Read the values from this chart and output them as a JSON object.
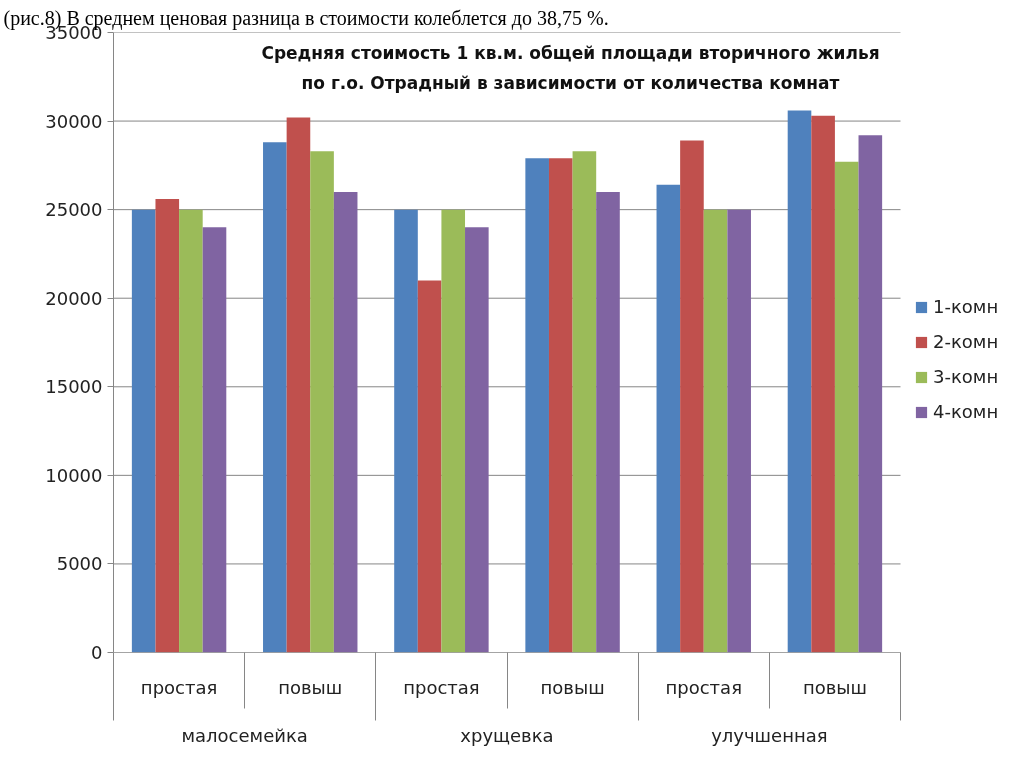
{
  "chart_data": {
    "type": "bar",
    "title": "Средняя стоимость 1 кв.м. общей площади вторичного жилья\nпо г.о. Отрадный в зависимости от количества комнат",
    "categories": [
      "простая",
      "повыш",
      "простая",
      "повыш",
      "простая",
      "повыш"
    ],
    "annotations": [
      "(рис.8) В среднем ценовая разница в стоимости колеблется до 38,75 %.",
      "малосемейка",
      "хрущевка",
      "улучшенная"
    ],
    "series": [
      {
        "name": "1-комн",
        "color": "#4f81bd",
        "values": [
          25000,
          28800,
          25000,
          27900,
          26400,
          30600
        ]
      },
      {
        "name": "2-комн",
        "color": "#c0504d",
        "values": [
          25600,
          30200,
          21000,
          27900,
          28900,
          30300
        ]
      },
      {
        "name": "3-комн",
        "color": "#9bbb59",
        "values": [
          25000,
          28300,
          25000,
          28300,
          25000,
          27700
        ]
      },
      {
        "name": "4-комн",
        "color": "#8064a2",
        "values": [
          24000,
          26000,
          24000,
          26000,
          25000,
          29200
        ]
      }
    ],
    "ylim": [
      0,
      35000
    ],
    "yticks": [
      0,
      5000,
      10000,
      15000,
      20000,
      25000,
      30000,
      35000
    ],
    "grid": "y",
    "legend": "right"
  }
}
